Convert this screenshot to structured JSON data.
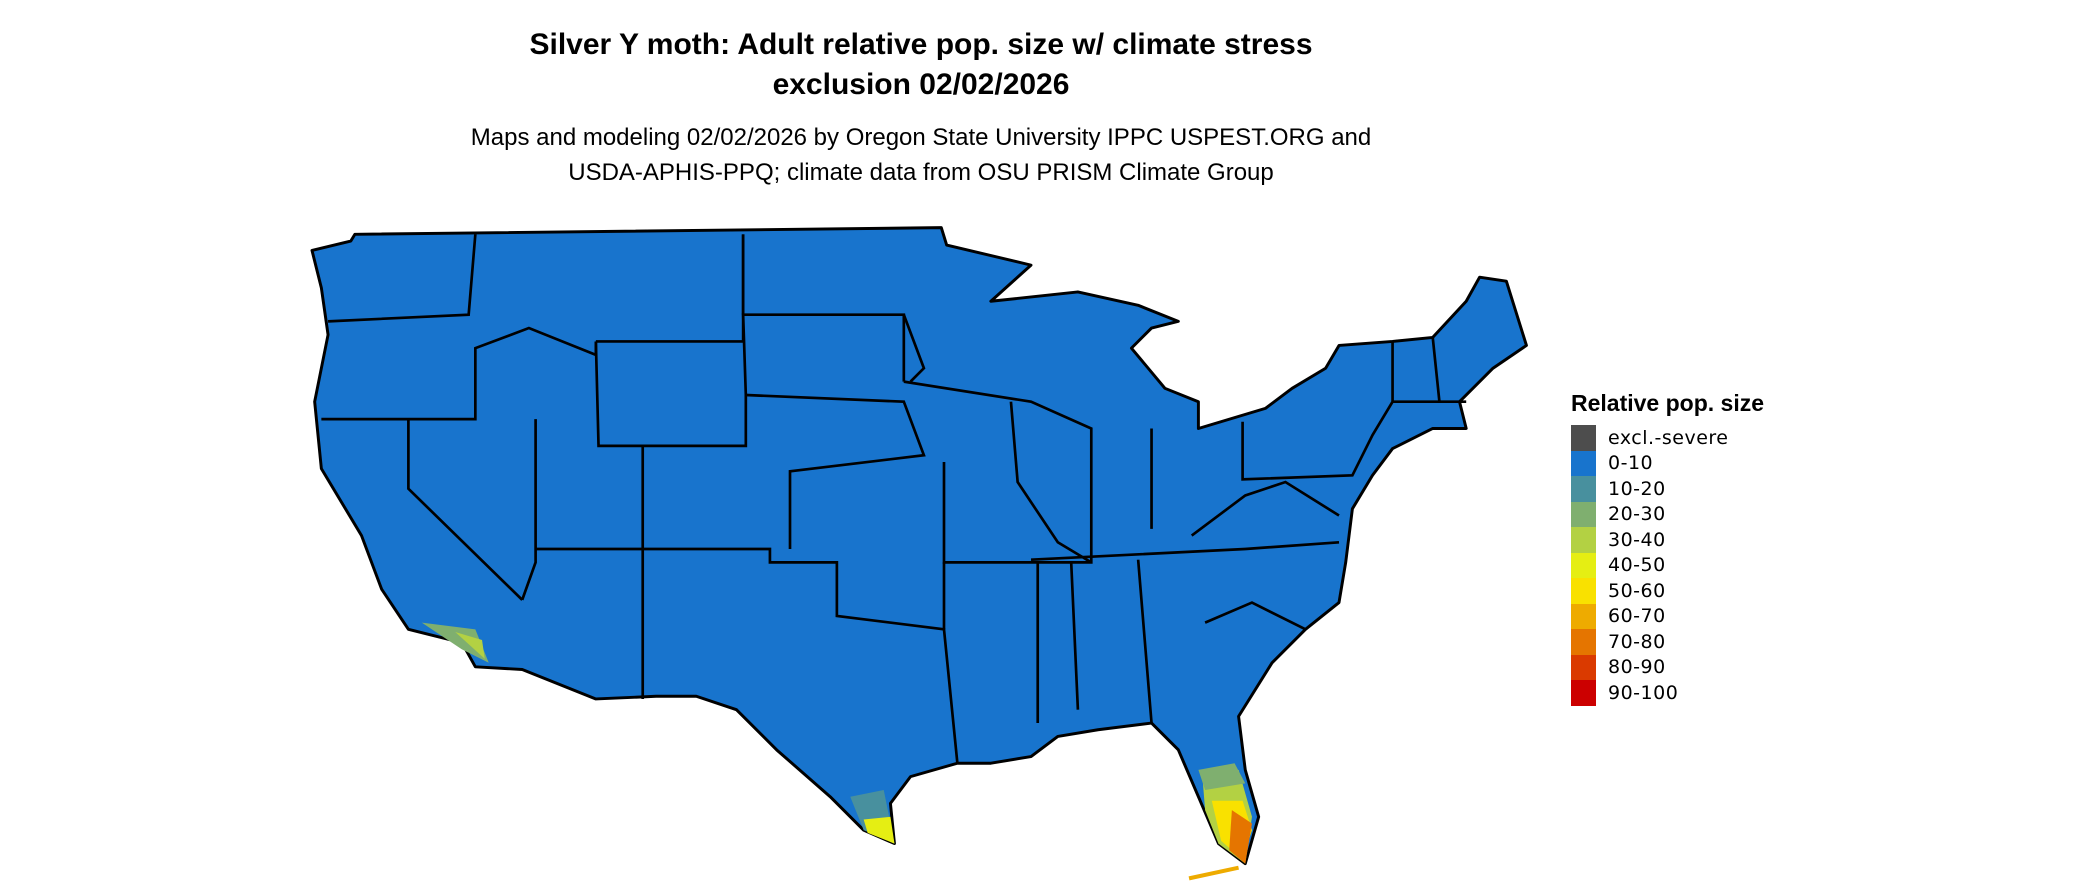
{
  "title": {
    "line1": "Silver Y moth: Adult relative pop. size w/ climate stress",
    "line2": "exclusion 02/02/2026"
  },
  "subtitle": {
    "line1": "Maps and modeling 02/02/2026 by Oregon State University IPPC USPEST.ORG and",
    "line2": "USDA-APHIS-PPQ; climate data from OSU PRISM Climate Group"
  },
  "map": {
    "region": "Contiguous United States",
    "base_class": "0-10",
    "base_color": "#1874CD",
    "border_color": "#000000"
  },
  "legend": {
    "title": "Relative pop. size",
    "items": [
      {
        "label": "excl.-severe",
        "color": "#4D4D4D"
      },
      {
        "label": "0-10",
        "color": "#1874CD"
      },
      {
        "label": "10-20",
        "color": "#48909E"
      },
      {
        "label": "20-30",
        "color": "#7FAF6F"
      },
      {
        "label": "30-40",
        "color": "#B3D143"
      },
      {
        "label": "40-50",
        "color": "#E5EE13"
      },
      {
        "label": "50-60",
        "color": "#F9E100"
      },
      {
        "label": "60-70",
        "color": "#EEAB00"
      },
      {
        "label": "70-80",
        "color": "#E57500"
      },
      {
        "label": "80-90",
        "color": "#DA3A00"
      },
      {
        "label": "90-100",
        "color": "#CC0000"
      }
    ]
  }
}
